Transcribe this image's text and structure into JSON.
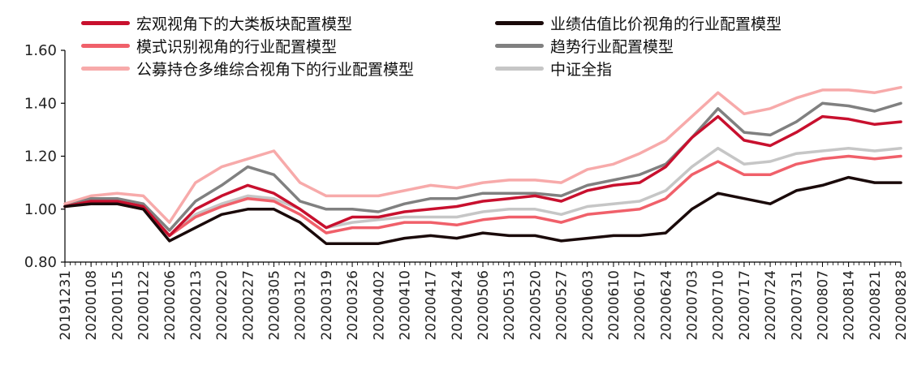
{
  "chart_data": {
    "type": "line",
    "ylim": [
      0.8,
      1.6
    ],
    "yticks": [
      "0.80",
      "1.00",
      "1.20",
      "1.40",
      "1.60"
    ],
    "categories": [
      "20191231",
      "20200108",
      "20200115",
      "20200122",
      "20200206",
      "20200213",
      "20200220",
      "20200227",
      "20200305",
      "20200312",
      "20200319",
      "20200326",
      "20200402",
      "20200410",
      "20200417",
      "20200424",
      "20200506",
      "20200513",
      "20200520",
      "20200527",
      "20200603",
      "20200610",
      "20200617",
      "20200624",
      "20200703",
      "20200710",
      "20200717",
      "20200724",
      "20200731",
      "20200807",
      "20200814",
      "20200821",
      "20200828"
    ],
    "series": [
      {
        "name": "宏观视角下的大类板块配置模型",
        "color": "#c8102e",
        "values": [
          1.01,
          1.03,
          1.03,
          1.01,
          0.9,
          1.0,
          1.05,
          1.09,
          1.06,
          1.0,
          0.93,
          0.97,
          0.97,
          0.99,
          1.0,
          1.01,
          1.03,
          1.04,
          1.05,
          1.03,
          1.07,
          1.09,
          1.1,
          1.16,
          1.27,
          1.35,
          1.26,
          1.24,
          1.29,
          1.35,
          1.34,
          1.32,
          1.33
        ]
      },
      {
        "name": "业绩估值比价视角的行业配置模型",
        "color": "#1a0a0a",
        "values": [
          1.01,
          1.02,
          1.02,
          1.0,
          0.88,
          0.93,
          0.98,
          1.0,
          1.0,
          0.95,
          0.87,
          0.87,
          0.87,
          0.89,
          0.9,
          0.89,
          0.91,
          0.9,
          0.9,
          0.88,
          0.89,
          0.9,
          0.9,
          0.91,
          1.0,
          1.06,
          1.04,
          1.02,
          1.07,
          1.09,
          1.12,
          1.1,
          1.1
        ]
      },
      {
        "name": "模式识别视角的行业配置模型",
        "color": "#f0606a",
        "values": [
          1.01,
          1.03,
          1.02,
          1.0,
          0.9,
          0.97,
          1.01,
          1.04,
          1.03,
          0.98,
          0.91,
          0.93,
          0.93,
          0.95,
          0.95,
          0.94,
          0.96,
          0.97,
          0.97,
          0.95,
          0.98,
          0.99,
          1.0,
          1.04,
          1.13,
          1.18,
          1.13,
          1.13,
          1.17,
          1.19,
          1.2,
          1.19,
          1.2
        ]
      },
      {
        "name": "趋势行业配置模型",
        "color": "#808080",
        "values": [
          1.01,
          1.04,
          1.04,
          1.02,
          0.92,
          1.03,
          1.09,
          1.16,
          1.13,
          1.03,
          1.0,
          1.0,
          0.99,
          1.02,
          1.04,
          1.04,
          1.06,
          1.06,
          1.06,
          1.05,
          1.09,
          1.11,
          1.13,
          1.17,
          1.27,
          1.38,
          1.29,
          1.28,
          1.33,
          1.4,
          1.39,
          1.37,
          1.4
        ]
      },
      {
        "name": "公募持仓多维综合视角下的行业配置模型",
        "color": "#f7aaaa",
        "values": [
          1.02,
          1.05,
          1.06,
          1.05,
          0.95,
          1.1,
          1.16,
          1.19,
          1.22,
          1.1,
          1.05,
          1.05,
          1.05,
          1.07,
          1.09,
          1.08,
          1.1,
          1.11,
          1.11,
          1.1,
          1.15,
          1.17,
          1.21,
          1.26,
          1.35,
          1.44,
          1.36,
          1.38,
          1.42,
          1.45,
          1.45,
          1.44,
          1.46
        ]
      },
      {
        "name": "中证全指",
        "color": "#c6c6c6",
        "values": [
          1.01,
          1.03,
          1.03,
          1.01,
          0.9,
          0.98,
          1.02,
          1.05,
          1.04,
          1.0,
          0.93,
          0.95,
          0.96,
          0.97,
          0.97,
          0.97,
          0.99,
          1.0,
          1.0,
          0.98,
          1.01,
          1.02,
          1.03,
          1.07,
          1.16,
          1.23,
          1.17,
          1.18,
          1.21,
          1.22,
          1.23,
          1.22,
          1.23
        ]
      }
    ]
  }
}
